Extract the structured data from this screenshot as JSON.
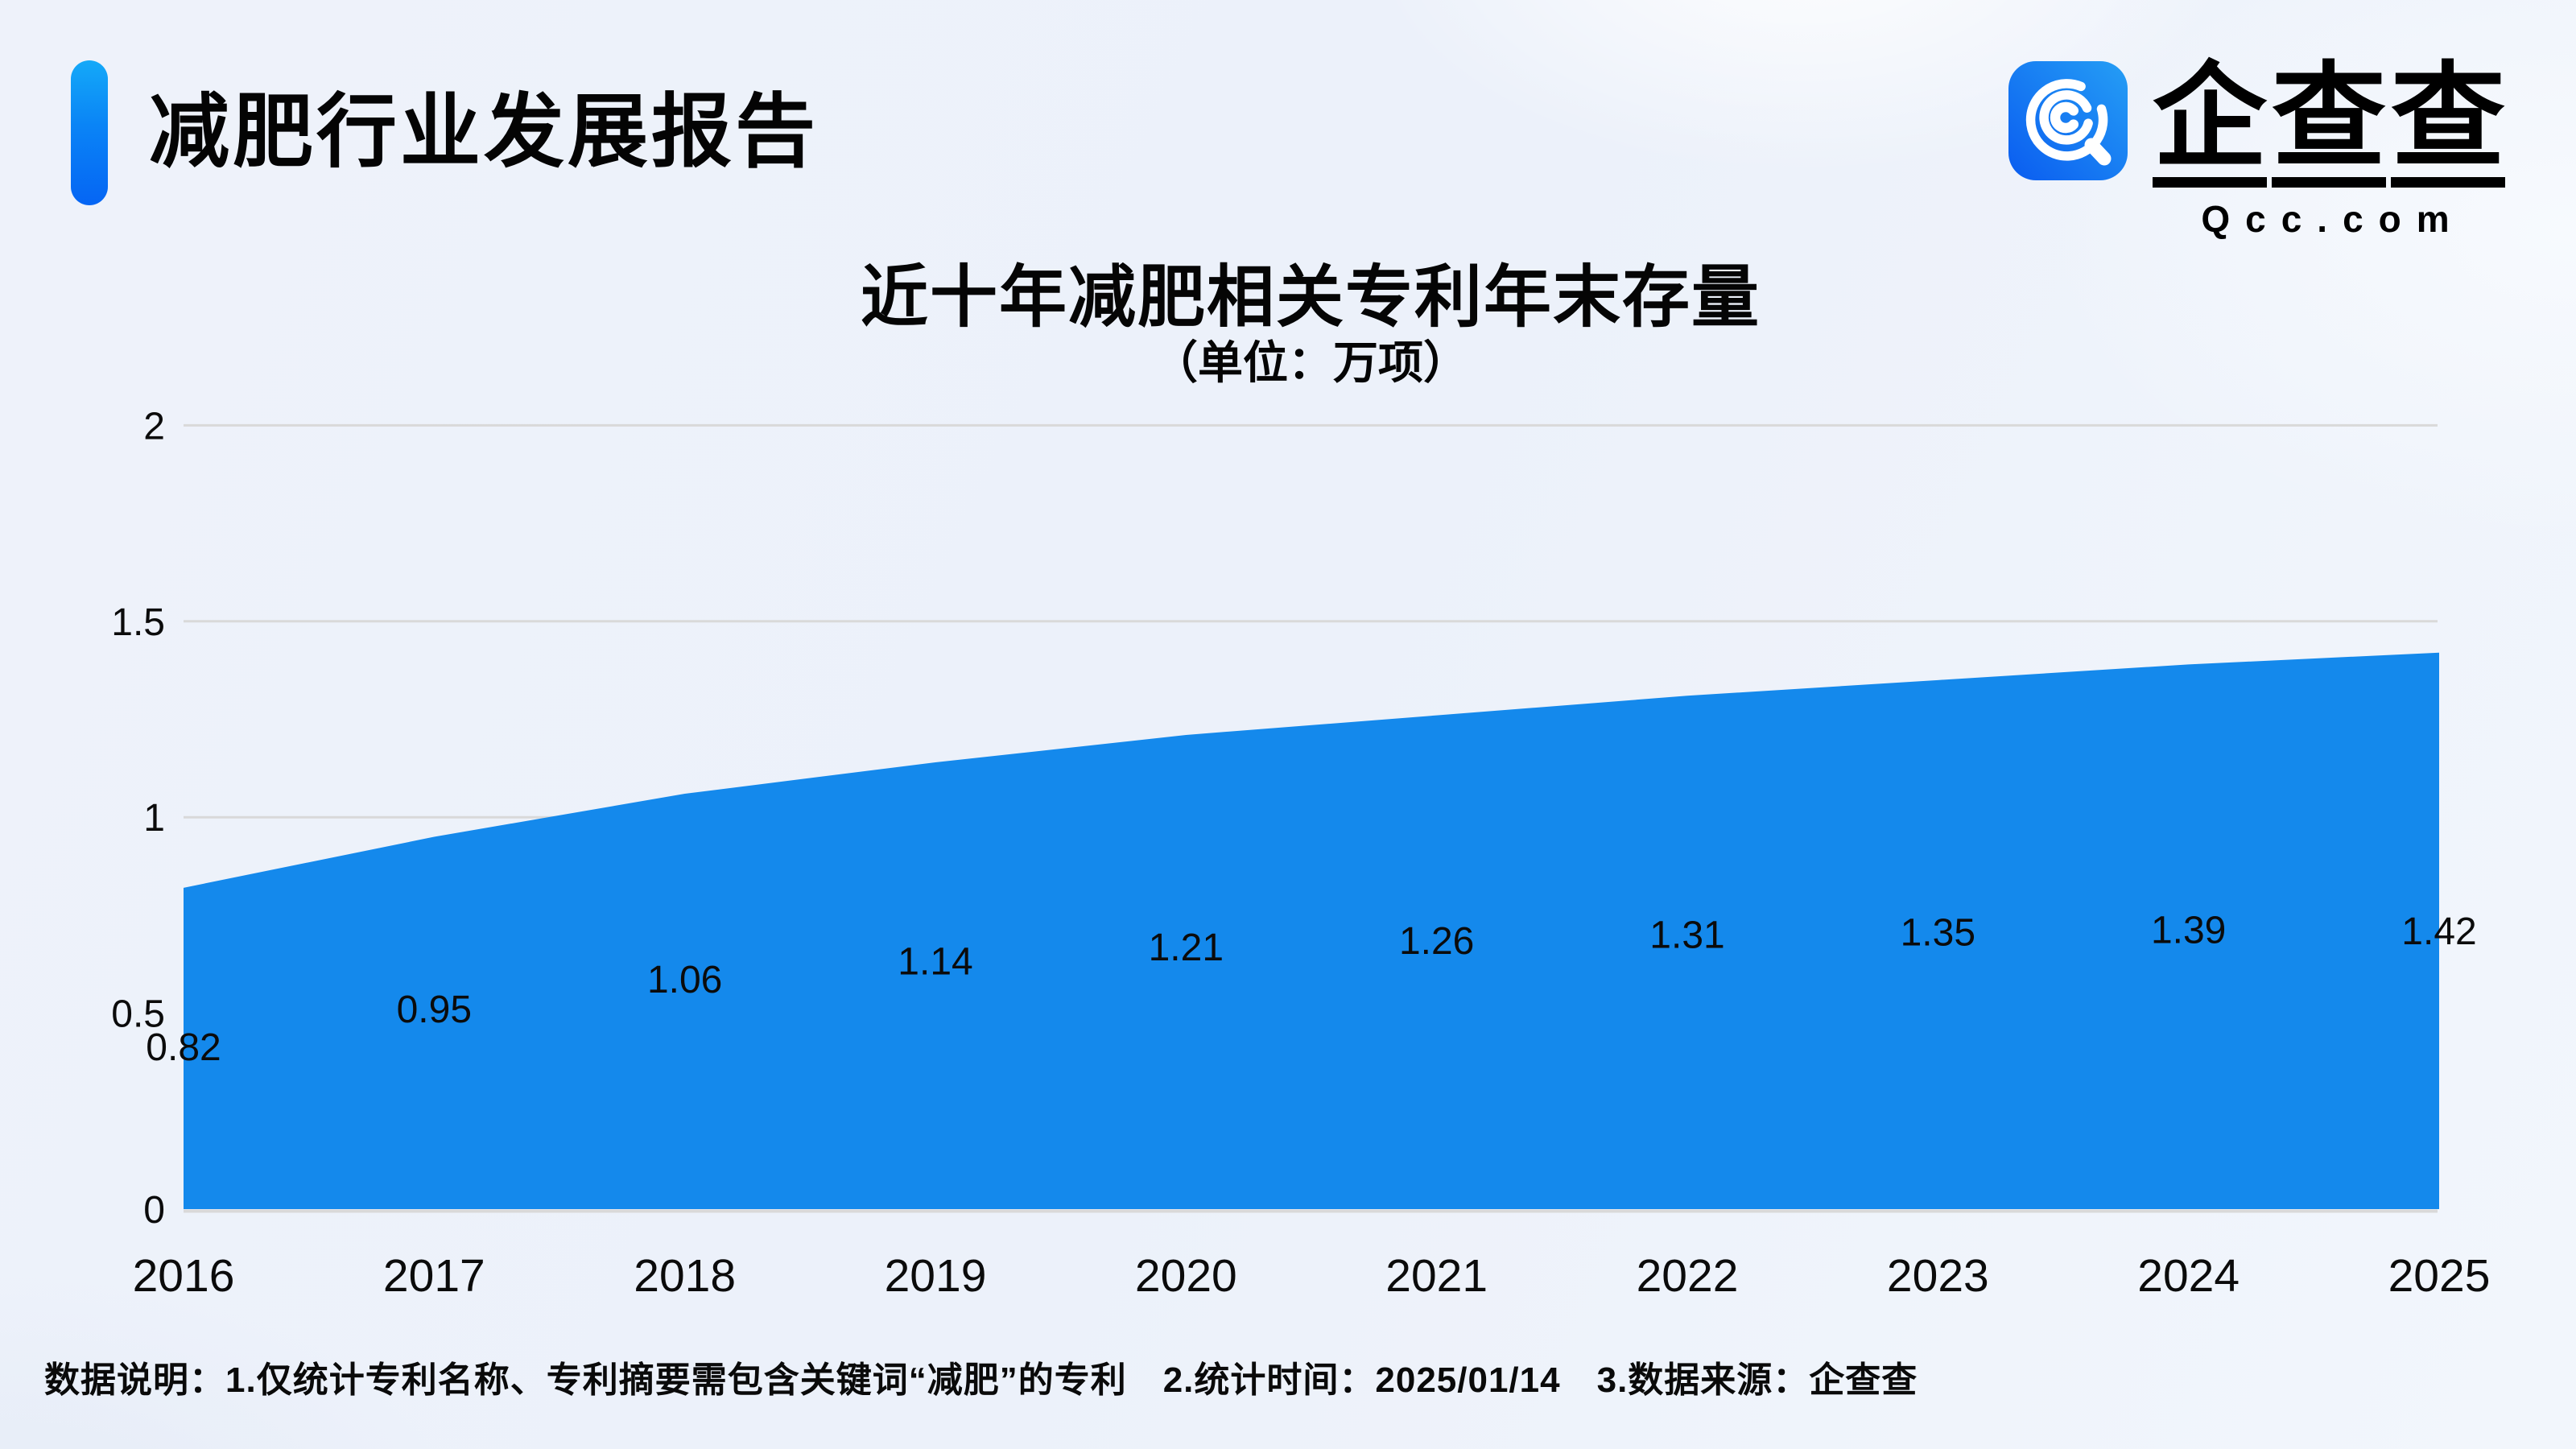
{
  "header": {
    "title": "减肥行业发展报告"
  },
  "logo": {
    "icon": "qcc-magnifier-icon",
    "chars": [
      "企",
      "查",
      "查"
    ],
    "domain": "Qcc.com"
  },
  "chart": {
    "title": "近十年减肥相关专利年末存量",
    "unit_label": "（单位：万项）"
  },
  "chart_data": {
    "type": "area",
    "title": "近十年减肥相关专利年末存量",
    "unit": "万项",
    "categories": [
      "2016",
      "2017",
      "2018",
      "2019",
      "2020",
      "2021",
      "2022",
      "2023",
      "2024",
      "2025"
    ],
    "values": [
      0.82,
      0.95,
      1.06,
      1.14,
      1.21,
      1.26,
      1.31,
      1.35,
      1.39,
      1.42
    ],
    "ylim": [
      0,
      2
    ],
    "yticks": [
      0,
      0.5,
      1,
      1.5,
      2
    ],
    "series_color": "#1489EC",
    "gridline_color": "#d9d9d9",
    "grid": true,
    "legend": false,
    "data_labels": true
  },
  "footer": {
    "note": "数据说明：1.仅统计专利名称、专利摘要需包含关键词“减肥”的专利　2.统计时间：2025/01/14　3.数据来源：企查查"
  }
}
